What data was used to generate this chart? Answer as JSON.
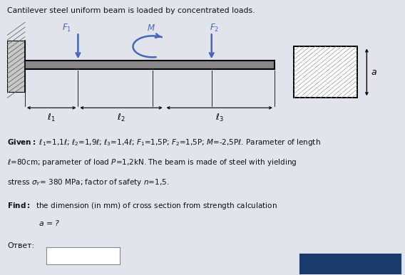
{
  "title": "Cantilever steel uniform beam is loaded by concentrated loads.",
  "bg_color": "#e2e4ec",
  "diagram_bg": "#d8dde8",
  "button_color": "#1a3a6b",
  "wall_color": "#b0b0b0",
  "beam_color": "#444444",
  "arrow_color": "#4466bb",
  "text_color": "#111111"
}
